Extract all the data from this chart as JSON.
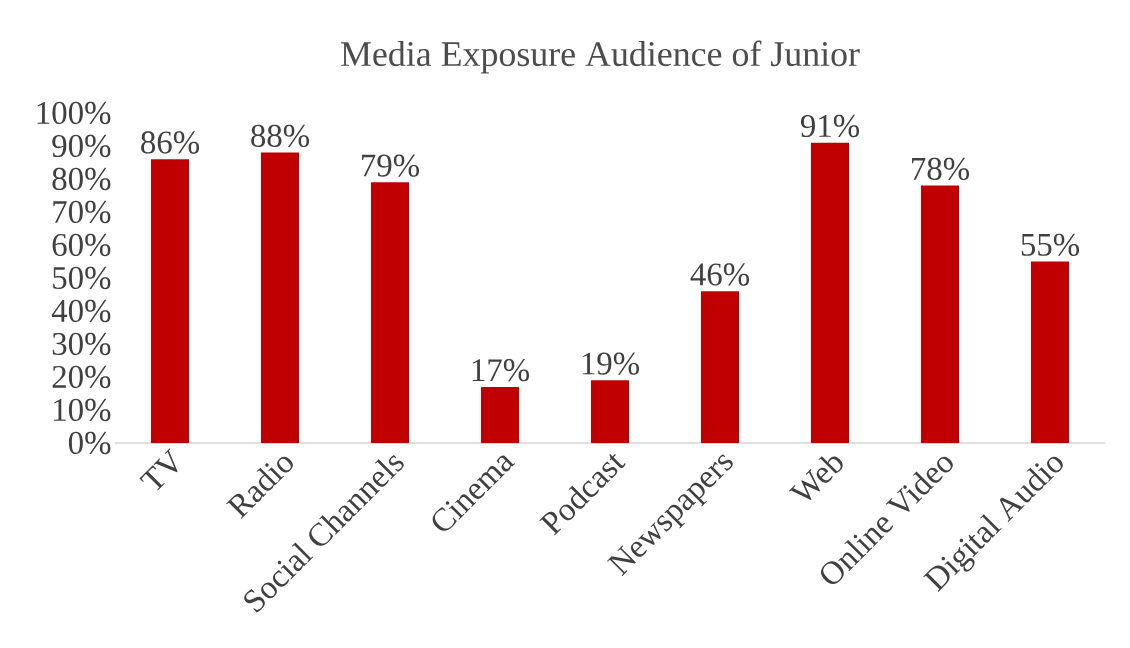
{
  "chart_data": {
    "type": "bar",
    "title": "Media Exposure Audience of Junior",
    "categories": [
      "TV",
      "Radio",
      "Social Channels",
      "Cinema",
      "Podcast",
      "Newspapers",
      "Web",
      "Online Video",
      "Digital Audio"
    ],
    "values": [
      86,
      88,
      79,
      17,
      19,
      46,
      91,
      78,
      55
    ],
    "value_labels": [
      "86%",
      "88%",
      "79%",
      "17%",
      "19%",
      "46%",
      "91%",
      "78%",
      "55%"
    ],
    "color": "#c00000",
    "ylim": [
      0,
      100
    ],
    "yticks": [
      {
        "value": 0,
        "label": "0%"
      },
      {
        "value": 10,
        "label": "10%"
      },
      {
        "value": 20,
        "label": "20%"
      },
      {
        "value": 30,
        "label": "30%"
      },
      {
        "value": 40,
        "label": "40%"
      },
      {
        "value": 50,
        "label": "50%"
      },
      {
        "value": 60,
        "label": "60%"
      },
      {
        "value": 70,
        "label": "70%"
      },
      {
        "value": 80,
        "label": "80%"
      },
      {
        "value": 90,
        "label": "90%"
      },
      {
        "value": 100,
        "label": "100%"
      }
    ]
  }
}
